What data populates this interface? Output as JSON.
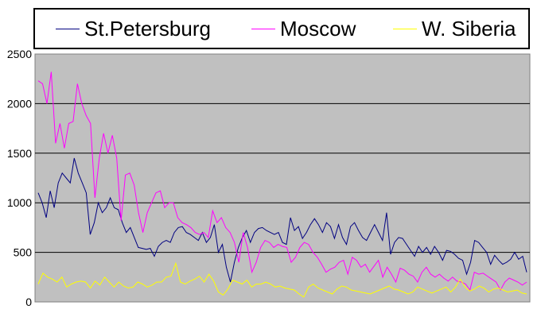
{
  "chart_data": {
    "type": "line",
    "ylim": [
      0,
      2500
    ],
    "yticks": [
      0,
      500,
      1000,
      1500,
      2000,
      2500
    ],
    "ytick_labels": [
      "0",
      "500",
      "1000",
      "1500",
      "2000",
      "2500"
    ],
    "grid": "horizontal",
    "plot_background": "#c0c0c0",
    "legend_position": "top",
    "series": [
      {
        "name": "St.Petersburg",
        "color": "#000080",
        "values": [
          1100,
          1000,
          850,
          1120,
          950,
          1200,
          1300,
          1250,
          1200,
          1450,
          1300,
          1200,
          1100,
          680,
          800,
          1000,
          900,
          950,
          1050,
          950,
          930,
          800,
          700,
          750,
          650,
          550,
          540,
          530,
          540,
          460,
          560,
          600,
          620,
          600,
          700,
          750,
          760,
          700,
          680,
          650,
          620,
          700,
          600,
          650,
          780,
          500,
          580,
          350,
          200,
          400,
          550,
          650,
          720,
          600,
          700,
          740,
          750,
          720,
          700,
          680,
          700,
          600,
          580,
          850,
          720,
          760,
          640,
          700,
          780,
          840,
          780,
          700,
          800,
          760,
          640,
          780,
          650,
          580,
          760,
          800,
          720,
          650,
          620,
          700,
          780,
          700,
          620,
          900,
          480,
          600,
          650,
          640,
          580,
          520,
          460,
          560,
          500,
          550,
          480,
          560,
          500,
          420,
          520,
          510,
          480,
          440,
          420,
          280,
          400,
          620,
          600,
          550,
          500,
          380,
          470,
          420,
          380,
          400,
          430,
          500,
          430,
          460,
          300
        ]
      },
      {
        "name": "Moscow",
        "color": "#ff00ff",
        "values": [
          2230,
          2200,
          2000,
          2320,
          1600,
          1800,
          1550,
          1800,
          1820,
          2200,
          2000,
          1880,
          1800,
          1050,
          1450,
          1700,
          1500,
          1680,
          1450,
          820,
          1280,
          1300,
          1180,
          900,
          700,
          900,
          1000,
          1100,
          1120,
          950,
          1000,
          1000,
          850,
          800,
          780,
          750,
          700,
          680,
          700,
          650,
          920,
          800,
          850,
          750,
          700,
          600,
          400,
          700,
          550,
          300,
          400,
          550,
          620,
          600,
          550,
          580,
          560,
          550,
          400,
          450,
          550,
          600,
          580,
          500,
          450,
          380,
          300,
          330,
          350,
          400,
          420,
          280,
          450,
          420,
          350,
          380,
          300,
          360,
          420,
          250,
          350,
          280,
          200,
          340,
          320,
          280,
          260,
          200,
          300,
          350,
          280,
          250,
          280,
          240,
          210,
          250,
          210,
          200,
          180,
          120,
          300,
          280,
          290,
          260,
          230,
          200,
          120,
          200,
          240,
          220,
          200,
          170,
          200
        ]
      },
      {
        "name": "W. Siberia",
        "color": "#ffff00",
        "values": [
          180,
          290,
          250,
          230,
          200,
          250,
          150,
          180,
          200,
          210,
          200,
          140,
          210,
          170,
          250,
          200,
          150,
          200,
          160,
          140,
          150,
          200,
          180,
          150,
          170,
          200,
          200,
          250,
          260,
          390,
          200,
          180,
          210,
          230,
          260,
          200,
          280,
          210,
          100,
          70,
          130,
          220,
          200,
          180,
          220,
          150,
          180,
          180,
          200,
          180,
          150,
          160,
          140,
          130,
          120,
          80,
          50,
          150,
          180,
          140,
          120,
          100,
          80,
          130,
          160,
          150,
          120,
          110,
          100,
          90,
          80,
          100,
          120,
          140,
          160,
          130,
          120,
          100,
          80,
          100,
          150,
          130,
          110,
          90,
          110,
          130,
          150,
          100,
          150,
          230,
          150,
          110,
          130,
          160,
          140,
          100,
          130,
          140,
          120,
          100,
          110,
          120,
          90,
          80
        ]
      }
    ]
  }
}
